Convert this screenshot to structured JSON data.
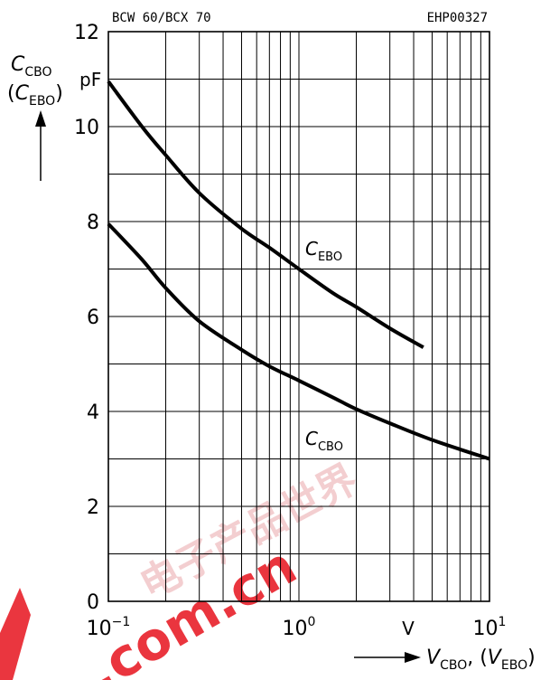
{
  "header": {
    "part_number": "BCW 60/BCX 70",
    "figure_id": "EHP00327"
  },
  "y_axis": {
    "label_main": "C",
    "label_main_sub": "CBO",
    "label_alt_open": "(",
    "label_alt": "C",
    "label_alt_sub": "EBO",
    "label_alt_close": ")",
    "unit": "pF"
  },
  "x_axis": {
    "label_main": "V",
    "label_main_sub": "CBO",
    "label_sep": ", (",
    "label_alt": "V",
    "label_alt_sub": "EBO",
    "label_close": ")",
    "unit": "V",
    "tick_base": "10",
    "ticks": [
      {
        "value": 0.1,
        "exp": "−1"
      },
      {
        "value": 1,
        "exp": "0"
      },
      {
        "value": 10,
        "exp": "1"
      }
    ]
  },
  "watermark": {
    "text_cn": "电子产品世界",
    "text_url": ".com.cn",
    "color": "#e8202a"
  },
  "chart_data": {
    "type": "line",
    "xscale": "log",
    "xlim": [
      0.1,
      10
    ],
    "ylim": [
      0,
      12
    ],
    "yticks": [
      0,
      2,
      4,
      6,
      8,
      10,
      12
    ],
    "grid": true,
    "series": [
      {
        "name": "C_EBO",
        "label_main": "C",
        "label_sub": "EBO",
        "x": [
          0.1,
          0.15,
          0.2,
          0.3,
          0.5,
          0.7,
          1.0,
          1.5,
          2.0,
          3.0,
          4.5
        ],
        "y": [
          10.95,
          10.0,
          9.4,
          8.6,
          7.85,
          7.45,
          7.0,
          6.5,
          6.2,
          5.75,
          5.35
        ]
      },
      {
        "name": "C_CBO",
        "label_main": "C",
        "label_sub": "CBO",
        "x": [
          0.1,
          0.15,
          0.2,
          0.3,
          0.5,
          0.7,
          1.0,
          1.5,
          2.0,
          3.0,
          5.0,
          10.0
        ],
        "y": [
          7.95,
          7.2,
          6.6,
          5.9,
          5.3,
          4.95,
          4.65,
          4.3,
          4.05,
          3.75,
          3.4,
          3.0
        ]
      }
    ]
  }
}
